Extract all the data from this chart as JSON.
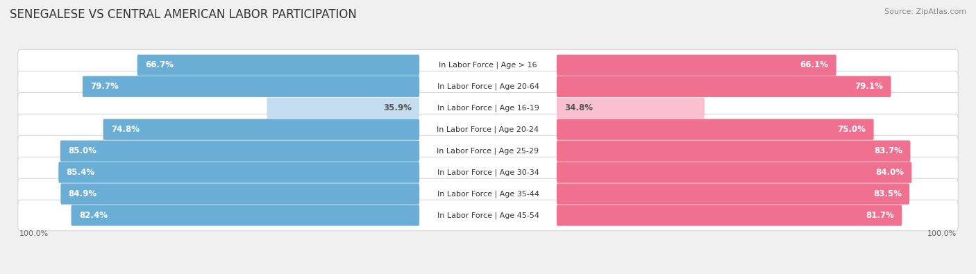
{
  "title": "SENEGALESE VS CENTRAL AMERICAN LABOR PARTICIPATION",
  "source": "Source: ZipAtlas.com",
  "categories": [
    "In Labor Force | Age > 16",
    "In Labor Force | Age 20-64",
    "In Labor Force | Age 16-19",
    "In Labor Force | Age 20-24",
    "In Labor Force | Age 25-29",
    "In Labor Force | Age 30-34",
    "In Labor Force | Age 35-44",
    "In Labor Force | Age 45-54"
  ],
  "senegalese_values": [
    66.7,
    79.7,
    35.9,
    74.8,
    85.0,
    85.4,
    84.9,
    82.4
  ],
  "central_american_values": [
    66.1,
    79.1,
    34.8,
    75.0,
    83.7,
    84.0,
    83.5,
    81.7
  ],
  "senegalese_label": "Senegalese",
  "central_american_label": "Central American",
  "senegalese_color_strong": "#6aaed6",
  "senegalese_color_light": "#c5ddf0",
  "central_american_color_strong": "#f07090",
  "central_american_color_light": "#f9c0cf",
  "bg_color": "#f0f0f0",
  "max_value": 100.0,
  "left_label": "100.0%",
  "right_label": "100.0%",
  "title_fontsize": 12,
  "source_fontsize": 8,
  "value_fontsize": 8.5,
  "category_fontsize": 8,
  "axis_label_fontsize": 8,
  "legend_fontsize": 9,
  "low_threshold": 50
}
